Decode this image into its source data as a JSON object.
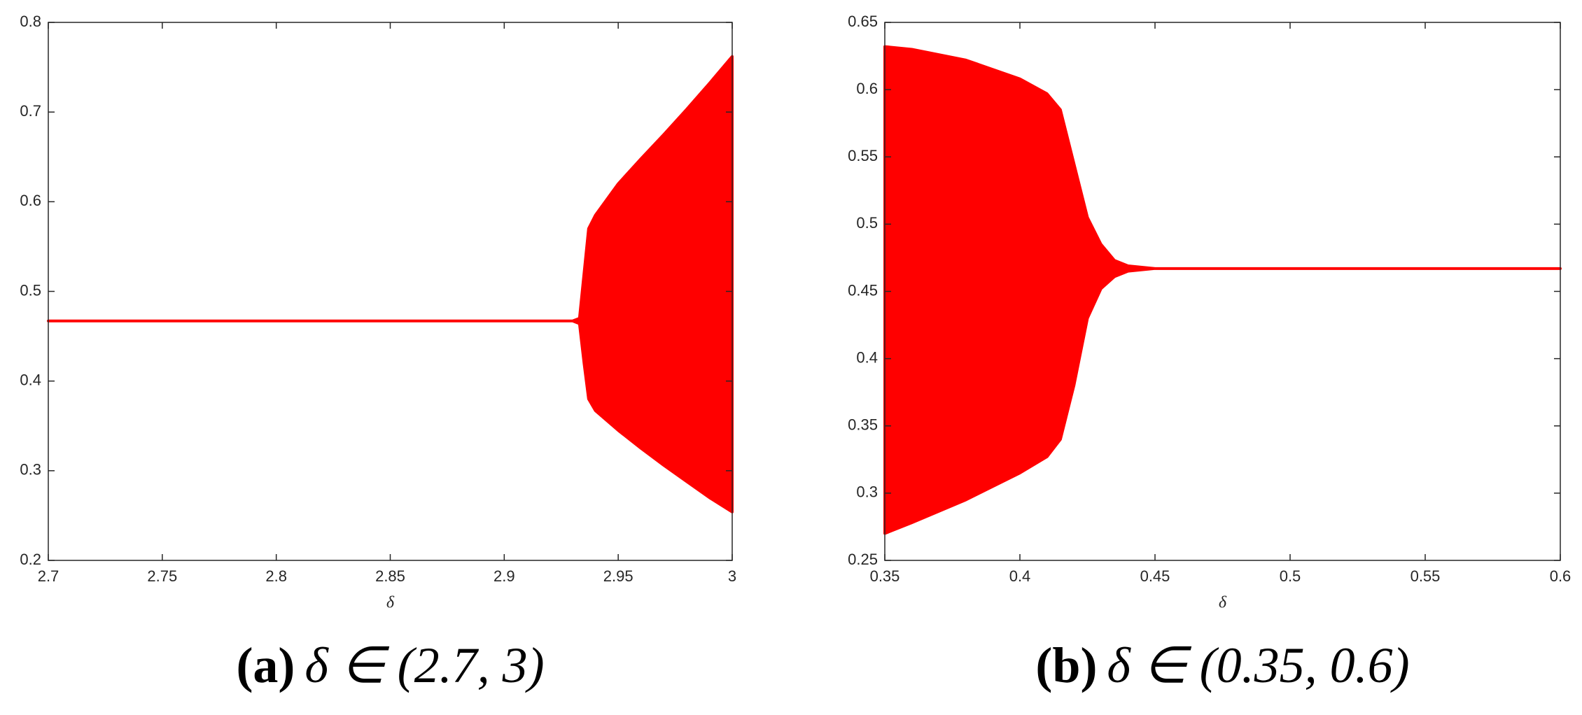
{
  "chart_data": [
    {
      "type": "area",
      "caption_label": "(a)",
      "caption": "δ ∈ (2.7, 3)",
      "xlabel": "δ",
      "color": "#ff0000",
      "x": [
        2.7,
        2.93,
        2.933,
        2.935,
        2.937,
        2.94,
        2.95,
        2.96,
        2.97,
        2.98,
        2.99,
        3
      ],
      "upper": [
        0.467,
        0.467,
        0.47,
        0.52,
        0.57,
        0.585,
        0.62,
        0.648,
        0.675,
        0.703,
        0.732,
        0.762
      ],
      "lower": [
        0.467,
        0.467,
        0.464,
        0.42,
        0.38,
        0.367,
        0.345,
        0.325,
        0.306,
        0.288,
        0.27,
        0.254
      ],
      "xlim": [
        2.7,
        3
      ],
      "ylim": [
        0.2,
        0.8
      ],
      "xticks": [
        2.7,
        2.75,
        2.8,
        2.85,
        2.9,
        2.95,
        3
      ],
      "yticks": [
        0.2,
        0.3,
        0.4,
        0.5,
        0.6,
        0.7,
        0.8
      ]
    },
    {
      "type": "area",
      "caption_label": "(b)",
      "caption": "δ ∈ (0.35, 0.6)",
      "xlabel": "δ",
      "color": "#ff0000",
      "x": [
        0.35,
        0.36,
        0.38,
        0.4,
        0.41,
        0.415,
        0.42,
        0.425,
        0.43,
        0.435,
        0.44,
        0.45,
        0.6
      ],
      "upper": [
        0.632,
        0.63,
        0.622,
        0.608,
        0.597,
        0.585,
        0.545,
        0.505,
        0.485,
        0.473,
        0.469,
        0.467,
        0.467
      ],
      "lower": [
        0.27,
        0.278,
        0.295,
        0.315,
        0.327,
        0.34,
        0.38,
        0.43,
        0.452,
        0.461,
        0.465,
        0.467,
        0.467
      ],
      "xlim": [
        0.35,
        0.6
      ],
      "ylim": [
        0.25,
        0.65
      ],
      "xticks": [
        0.35,
        0.4,
        0.45,
        0.5,
        0.55,
        0.6
      ],
      "yticks": [
        0.25,
        0.3,
        0.35,
        0.4,
        0.45,
        0.5,
        0.55,
        0.6,
        0.65
      ]
    }
  ]
}
